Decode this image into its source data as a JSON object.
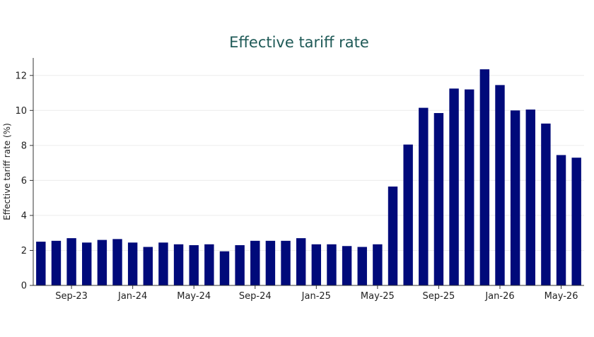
{
  "chart_data": {
    "type": "bar",
    "title": "Effective tariff rate",
    "xlabel": "",
    "ylabel": "Effective tariff rate (%)",
    "ylim": [
      0,
      13
    ],
    "yticks": [
      0,
      2,
      4,
      6,
      8,
      10,
      12
    ],
    "grid": true,
    "bar_color": "#000a7a",
    "categories": [
      "Jul-23",
      "Aug-23",
      "Sep-23",
      "Oct-23",
      "Nov-23",
      "Dec-23",
      "Jan-24",
      "Feb-24",
      "Mar-24",
      "Apr-24",
      "May-24",
      "Jun-24",
      "Jul-24",
      "Aug-24",
      "Sep-24",
      "Oct-24",
      "Nov-24",
      "Dec-24",
      "Jan-25",
      "Feb-25",
      "Mar-25",
      "Apr-25",
      "May-25",
      "Jun-25",
      "Jul-25",
      "Aug-25",
      "Sep-25",
      "Oct-25",
      "Nov-25",
      "Dec-25",
      "Jan-26",
      "Feb-26",
      "Mar-26",
      "Apr-26",
      "May-26",
      "Jun-26"
    ],
    "values": [
      2.5,
      2.55,
      2.7,
      2.45,
      2.6,
      2.65,
      2.45,
      2.2,
      2.45,
      2.35,
      2.3,
      2.35,
      1.95,
      2.3,
      2.55,
      2.55,
      2.55,
      2.7,
      2.35,
      2.35,
      2.25,
      2.2,
      2.35,
      5.65,
      8.05,
      10.15,
      9.85,
      11.25,
      11.2,
      12.35,
      11.45,
      10.0,
      10.05,
      9.25,
      7.45,
      7.3
    ],
    "xtick_labels": [
      {
        "category": "Sep-23",
        "label": "Sep-23"
      },
      {
        "category": "Jan-24",
        "label": "Jan-24"
      },
      {
        "category": "May-24",
        "label": "May-24"
      },
      {
        "category": "Sep-24",
        "label": "Sep-24"
      },
      {
        "category": "Jan-25",
        "label": "Jan-25"
      },
      {
        "category": "May-25",
        "label": "May-25"
      },
      {
        "category": "Sep-25",
        "label": "Sep-25"
      },
      {
        "category": "Jan-26",
        "label": "Jan-26"
      },
      {
        "category": "May-26",
        "label": "May-26"
      }
    ]
  }
}
